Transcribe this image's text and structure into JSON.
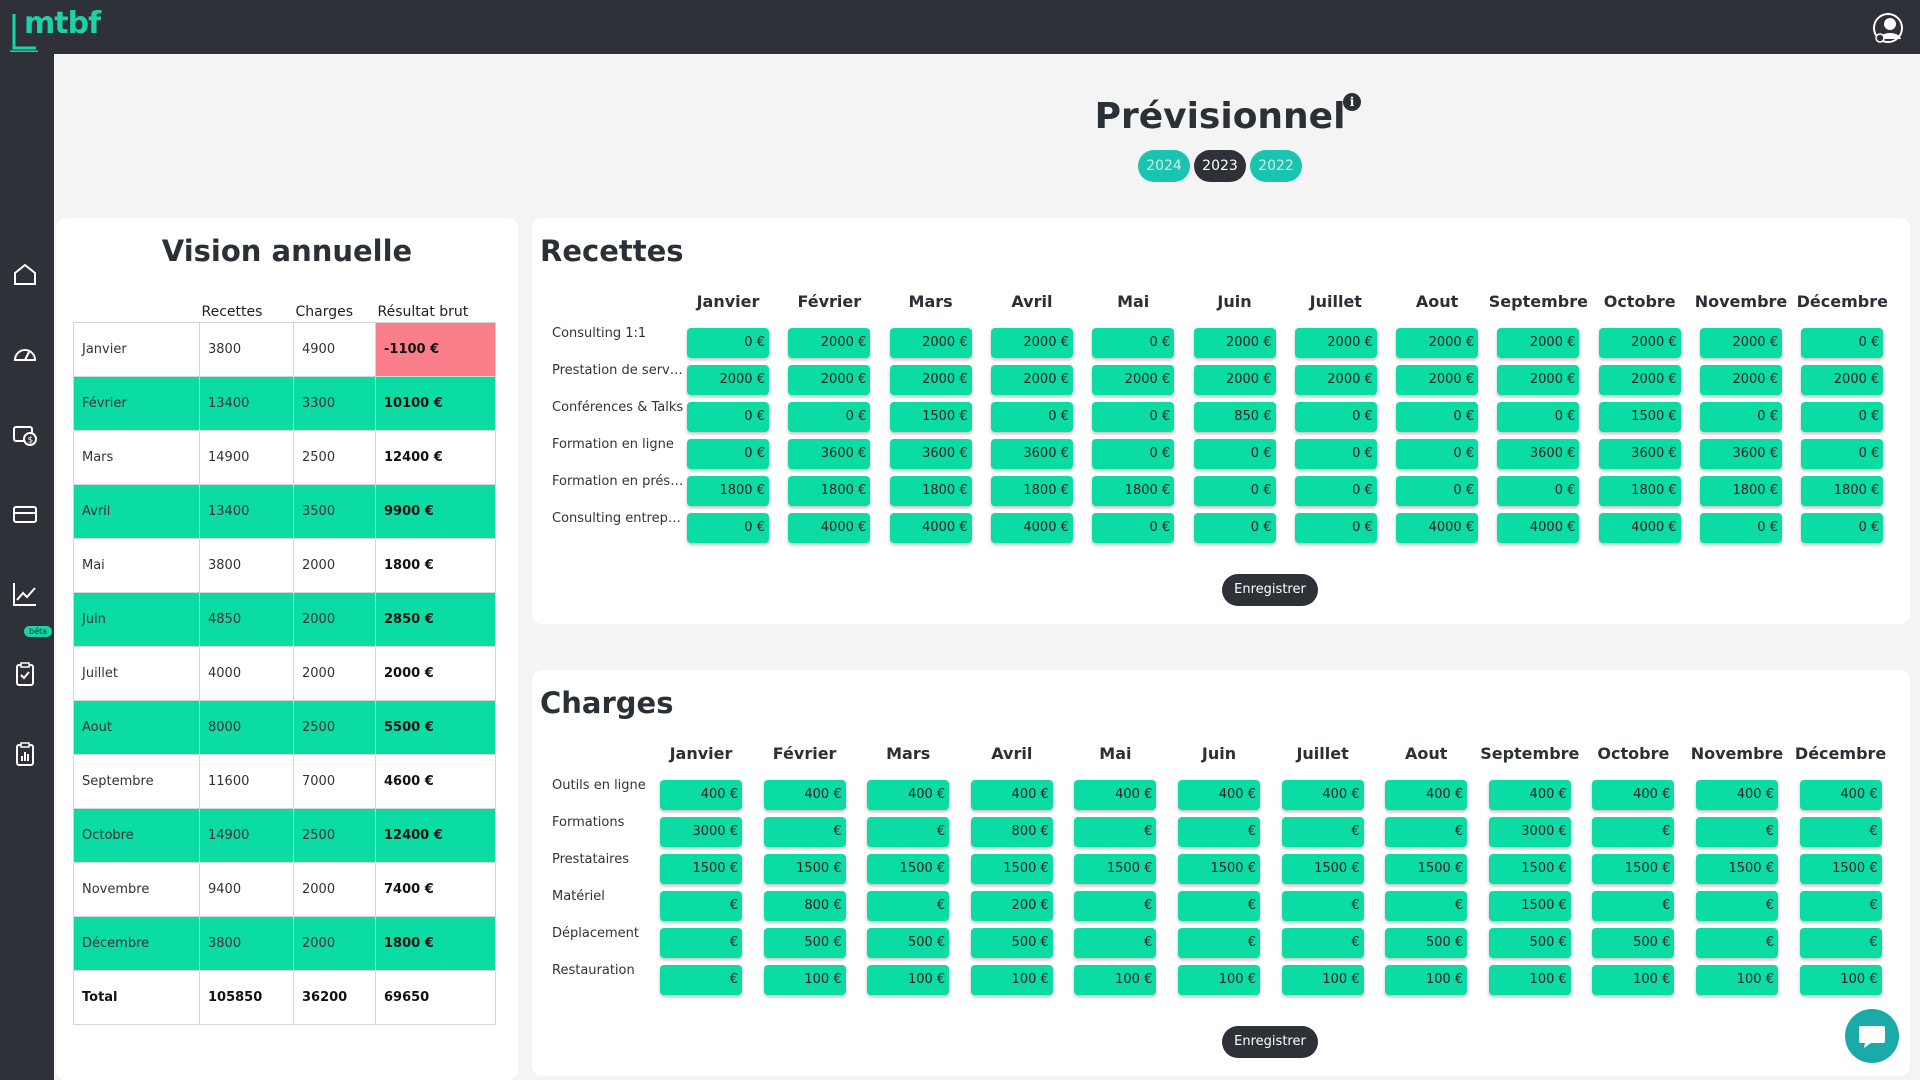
{
  "app": {
    "logo_text": "mtbf"
  },
  "header": {
    "title": "Prévisionnel",
    "info_icon": "i",
    "years": [
      "2024",
      "2023",
      "2022"
    ],
    "active_year": "2023"
  },
  "sidebar": {
    "beta_label": "béta",
    "icons": [
      "home-icon",
      "dashboard-icon",
      "money-icon",
      "card-icon",
      "chart-icon",
      "clipboard-icon",
      "report-icon"
    ]
  },
  "annual": {
    "title": "Vision annuelle",
    "headers": [
      "",
      "Recettes",
      "Charges",
      "Résultat brut"
    ],
    "rows": [
      {
        "month": "Janvier",
        "recettes": "3800",
        "charges": "4900",
        "resultat": "-1100 €"
      },
      {
        "month": "Février",
        "recettes": "13400",
        "charges": "3300",
        "resultat": "10100 €"
      },
      {
        "month": "Mars",
        "recettes": "14900",
        "charges": "2500",
        "resultat": "12400 €"
      },
      {
        "month": "Avril",
        "recettes": "13400",
        "charges": "3500",
        "resultat": "9900 €"
      },
      {
        "month": "Mai",
        "recettes": "3800",
        "charges": "2000",
        "resultat": "1800 €"
      },
      {
        "month": "Juin",
        "recettes": "4850",
        "charges": "2000",
        "resultat": "2850 €"
      },
      {
        "month": "Juillet",
        "recettes": "4000",
        "charges": "2000",
        "resultat": "2000 €"
      },
      {
        "month": "Aout",
        "recettes": "8000",
        "charges": "2500",
        "resultat": "5500 €"
      },
      {
        "month": "Septembre",
        "recettes": "11600",
        "charges": "7000",
        "resultat": "4600 €"
      },
      {
        "month": "Octobre",
        "recettes": "14900",
        "charges": "2500",
        "resultat": "12400 €"
      },
      {
        "month": "Novembre",
        "recettes": "9400",
        "charges": "2000",
        "resultat": "7400 €"
      },
      {
        "month": "Décembre",
        "recettes": "3800",
        "charges": "2000",
        "resultat": "1800 €"
      }
    ],
    "total": {
      "month": "Total",
      "recettes": "105850",
      "charges": "36200",
      "resultat": "69650"
    }
  },
  "months": [
    "Janvier",
    "Février",
    "Mars",
    "Avril",
    "Mai",
    "Juin",
    "Juillet",
    "Aout",
    "Septembre",
    "Octobre",
    "Novembre",
    "Décembre"
  ],
  "currency": "€",
  "recettes": {
    "title": "Recettes",
    "save_label": "Enregistrer",
    "rows": [
      {
        "label": "Consulting 1:1",
        "values": [
          "0",
          "2000",
          "2000",
          "2000",
          "0",
          "2000",
          "2000",
          "2000",
          "2000",
          "2000",
          "2000",
          "0"
        ]
      },
      {
        "label": "Prestation de service",
        "values": [
          "2000",
          "2000",
          "2000",
          "2000",
          "2000",
          "2000",
          "2000",
          "2000",
          "2000",
          "2000",
          "2000",
          "2000"
        ]
      },
      {
        "label": "Conférences & Talks",
        "values": [
          "0",
          "0",
          "1500",
          "0",
          "0",
          "850",
          "0",
          "0",
          "0",
          "1500",
          "0",
          "0"
        ]
      },
      {
        "label": "Formation en ligne",
        "values": [
          "0",
          "3600",
          "3600",
          "3600",
          "0",
          "0",
          "0",
          "0",
          "3600",
          "3600",
          "3600",
          "0"
        ]
      },
      {
        "label": "Formation en présentiel",
        "values": [
          "1800",
          "1800",
          "1800",
          "1800",
          "1800",
          "0",
          "0",
          "0",
          "0",
          "1800",
          "1800",
          "1800"
        ]
      },
      {
        "label": "Consulting entreprise",
        "values": [
          "0",
          "4000",
          "4000",
          "4000",
          "0",
          "0",
          "0",
          "4000",
          "4000",
          "4000",
          "0",
          "0"
        ]
      }
    ]
  },
  "charges": {
    "title": "Charges",
    "save_label": "Enregistrer",
    "rows": [
      {
        "label": "Outils en ligne",
        "values": [
          "400",
          "400",
          "400",
          "400",
          "400",
          "400",
          "400",
          "400",
          "400",
          "400",
          "400",
          "400"
        ]
      },
      {
        "label": "Formations",
        "values": [
          "3000",
          "",
          "",
          "800",
          "",
          "",
          "",
          "",
          "3000",
          "",
          "",
          ""
        ]
      },
      {
        "label": "Prestataires",
        "values": [
          "1500",
          "1500",
          "1500",
          "1500",
          "1500",
          "1500",
          "1500",
          "1500",
          "1500",
          "1500",
          "1500",
          "1500"
        ]
      },
      {
        "label": "Matériel",
        "values": [
          "",
          "800",
          "",
          "200",
          "",
          "",
          "",
          "",
          "1500",
          "",
          "",
          ""
        ]
      },
      {
        "label": "Déplacement",
        "values": [
          "",
          "500",
          "500",
          "500",
          "",
          "",
          "",
          "500",
          "500",
          "500",
          "",
          ""
        ]
      },
      {
        "label": "Restauration",
        "values": [
          "",
          "100",
          "100",
          "100",
          "100",
          "100",
          "100",
          "100",
          "100",
          "100",
          "100",
          "100"
        ]
      }
    ]
  },
  "colors": {
    "accent": "#0bdca4",
    "dark": "#2e3137",
    "negative": "#fb7f8b",
    "teal_tab": "#19c4b0"
  }
}
